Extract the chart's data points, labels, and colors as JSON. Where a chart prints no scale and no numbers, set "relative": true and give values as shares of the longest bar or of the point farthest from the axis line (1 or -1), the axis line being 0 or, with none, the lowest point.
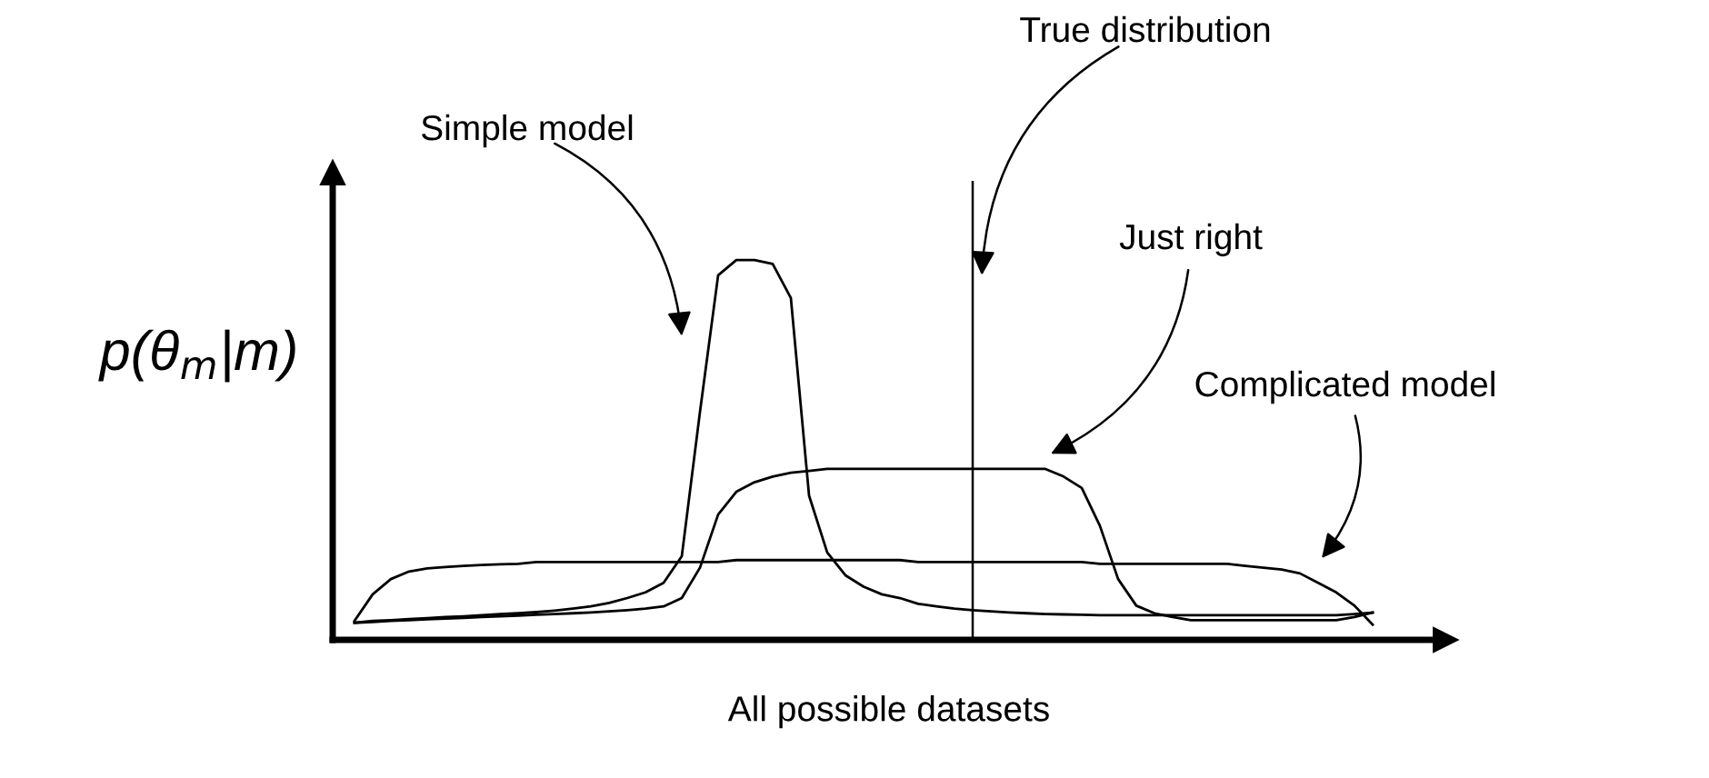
{
  "chart_data": {
    "type": "line",
    "relative": true,
    "xlabel": "All possible datasets",
    "ylabel": "p(θ$_{m}$|m)",
    "categories": [
      null,
      null,
      null,
      null,
      null,
      null,
      null,
      null,
      null,
      null,
      null,
      null,
      null,
      null,
      null,
      null,
      null,
      null,
      null,
      null,
      null,
      null,
      null,
      null,
      null,
      null,
      null,
      null,
      null,
      null,
      null,
      null,
      null,
      null,
      null,
      null,
      null,
      null,
      null,
      null,
      null,
      null,
      null,
      null,
      null,
      null,
      null,
      null,
      null,
      null,
      null,
      null,
      null,
      null,
      null,
      null,
      null
    ],
    "series": [
      {
        "name": "Simple model",
        "color": "#000000",
        "values": [
          0.045,
          0.05,
          0.052,
          0.055,
          0.057,
          0.06,
          0.062,
          0.065,
          0.068,
          0.07,
          0.073,
          0.077,
          0.082,
          0.088,
          0.097,
          0.11,
          0.125,
          0.15,
          0.22,
          0.6,
          0.96,
          1.0,
          1.0,
          0.99,
          0.9,
          0.38,
          0.23,
          0.17,
          0.14,
          0.12,
          0.11,
          0.095,
          0.088,
          0.082,
          0.078,
          0.075,
          0.072,
          0.07,
          0.068,
          0.067,
          0.066,
          0.065,
          0.065,
          0.065,
          0.065,
          0.065,
          0.065,
          0.065,
          0.065,
          0.065,
          0.065,
          0.065,
          0.065,
          0.065,
          0.065,
          0.068,
          0.072
        ]
      },
      {
        "name": "Just right",
        "color": "#000000",
        "values": [
          0.045,
          0.047,
          0.05,
          0.052,
          0.054,
          0.056,
          0.058,
          0.06,
          0.062,
          0.064,
          0.066,
          0.068,
          0.07,
          0.072,
          0.075,
          0.078,
          0.082,
          0.088,
          0.11,
          0.19,
          0.33,
          0.39,
          0.415,
          0.43,
          0.44,
          0.445,
          0.45,
          0.45,
          0.45,
          0.45,
          0.45,
          0.45,
          0.45,
          0.45,
          0.45,
          0.45,
          0.45,
          0.45,
          0.45,
          0.43,
          0.4,
          0.3,
          0.16,
          0.09,
          0.07,
          0.06,
          0.052,
          0.052,
          0.052,
          0.052,
          0.052,
          0.052,
          0.052,
          0.052,
          0.052,
          0.06,
          0.072
        ]
      },
      {
        "name": "Complicated model",
        "color": "#000000",
        "values": [
          0.05,
          0.12,
          0.16,
          0.18,
          0.188,
          0.192,
          0.195,
          0.197,
          0.199,
          0.2,
          0.205,
          0.205,
          0.205,
          0.205,
          0.205,
          0.205,
          0.205,
          0.205,
          0.205,
          0.205,
          0.205,
          0.21,
          0.21,
          0.21,
          0.21,
          0.21,
          0.21,
          0.21,
          0.21,
          0.21,
          0.21,
          0.205,
          0.205,
          0.205,
          0.205,
          0.205,
          0.205,
          0.205,
          0.205,
          0.205,
          0.205,
          0.2,
          0.2,
          0.2,
          0.2,
          0.2,
          0.2,
          0.2,
          0.2,
          0.195,
          0.19,
          0.185,
          0.175,
          0.15,
          0.125,
          0.09,
          0.04
        ]
      }
    ],
    "annotations": [
      "True distribution"
    ],
    "legend": false,
    "marker": "none",
    "line_style": "solid"
  }
}
